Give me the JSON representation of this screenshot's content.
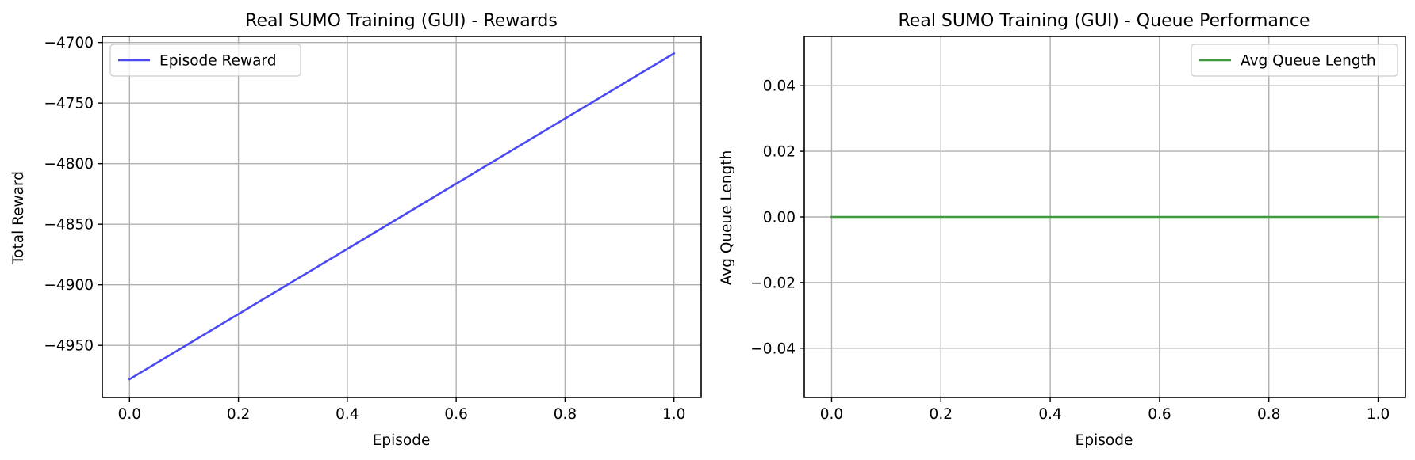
{
  "chart_data": [
    {
      "type": "line",
      "title": "Real SUMO Training (GUI) - Rewards",
      "xlabel": "Episode",
      "ylabel": "Total Reward",
      "xlim": [
        -0.05,
        1.05
      ],
      "ylim": [
        -4993,
        -4695
      ],
      "xticks": [
        0.0,
        0.2,
        0.4,
        0.6,
        0.8,
        1.0
      ],
      "xtick_labels": [
        "0.0",
        "0.2",
        "0.4",
        "0.6",
        "0.8",
        "1.0"
      ],
      "yticks": [
        -4950,
        -4900,
        -4850,
        -4800,
        -4750,
        -4700
      ],
      "ytick_labels": [
        "−4950",
        "−4900",
        "−4850",
        "−4800",
        "−4750",
        "−4700"
      ],
      "grid": true,
      "legend_position": "upper left",
      "series": [
        {
          "name": "Episode Reward",
          "color": "#4a4af0",
          "x": [
            0,
            1
          ],
          "y": [
            -4978,
            -4709
          ]
        }
      ]
    },
    {
      "type": "line",
      "title": "Real SUMO Training (GUI) - Queue Performance",
      "xlabel": "Episode",
      "ylabel": "Avg Queue Length",
      "xlim": [
        -0.05,
        1.05
      ],
      "ylim": [
        -0.055,
        0.055
      ],
      "xticks": [
        0.0,
        0.2,
        0.4,
        0.6,
        0.8,
        1.0
      ],
      "xtick_labels": [
        "0.0",
        "0.2",
        "0.4",
        "0.6",
        "0.8",
        "1.0"
      ],
      "yticks": [
        -0.04,
        -0.02,
        0.0,
        0.02,
        0.04
      ],
      "ytick_labels": [
        "−0.04",
        "−0.02",
        "0.00",
        "0.02",
        "0.04"
      ],
      "grid": true,
      "legend_position": "upper right",
      "series": [
        {
          "name": "Avg Queue Length",
          "color": "#3f9a3f",
          "x": [
            0,
            1
          ],
          "y": [
            0,
            0
          ]
        }
      ]
    }
  ]
}
